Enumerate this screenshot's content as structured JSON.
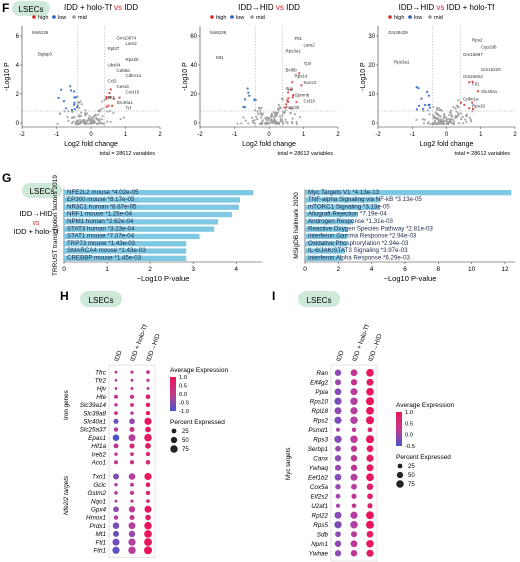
{
  "colors": {
    "high": "#d62728",
    "low": "#1f5fbf",
    "mid": "#9a9a9a",
    "pill": "#cfe9d9",
    "bar": "#7ec8e3",
    "dot_high": "#e8175d",
    "dot_low": "#4a56c8"
  },
  "panel_F": {
    "letter": "F",
    "pill": "LSECs",
    "legend": {
      "high": "high",
      "low": "low",
      "mid": "mid"
    },
    "ylabel": "-Log10 P",
    "xlabel": "Log2 fold change",
    "total_label": "total = 28612 variables",
    "plots": [
      {
        "title_a": "IDD + holo-Tf",
        "title_vs": "vs",
        "title_b": "IDD",
        "xlim": [
          -2,
          2
        ],
        "xticks": [
          "-2",
          "-1",
          "0",
          "1",
          "2"
        ],
        "yticks": [
          "0",
          "2",
          "4",
          "6"
        ],
        "labels": [
          "Mir6236",
          "Gm10074",
          "Lars2",
          "Rpl37",
          "Bglap3",
          "Rps20",
          "Ubx04",
          "Cd59a",
          "Cdkn1a",
          "Ccl2",
          "Ces2c",
          "Cxcl10",
          "Mt1",
          "Slc40a1",
          "Trf"
        ]
      },
      {
        "title_a": "IDD→HID",
        "title_vs": "vs",
        "title_b": "IDD",
        "xlim": [
          -2,
          2
        ],
        "xticks": [
          "-2",
          "-1",
          "0",
          "1",
          "2"
        ],
        "yticks": [
          "0",
          "20",
          "40",
          "60"
        ],
        "labels": [
          "Mir6236",
          "Ftl1",
          "Lars2",
          "Rps3a1",
          "Mt1",
          "Tprl",
          "Bcl6b",
          "Rps14",
          "Socs3",
          "Itga",
          "Gpnmb",
          "Ccl10",
          "Fcgr2b"
        ]
      },
      {
        "title_a": "IDD→HID",
        "title_vs": "vs",
        "title_b": "IDD + holo-Tf",
        "xlim": [
          -2,
          2
        ],
        "xticks": [
          "-2",
          "-1",
          "0",
          "1",
          "2"
        ],
        "yticks": [
          "0",
          "10",
          "20",
          "30"
        ],
        "labels": [
          "Gm28439",
          "Rps2",
          "Cyp2d6",
          "Gm16897",
          "Rps3a1",
          "Gm15220",
          "Gm26822",
          "Ftl1",
          "Slc40a1",
          "Cdkn1a",
          "Rps10"
        ]
      }
    ]
  },
  "panel_G": {
    "letter": "G",
    "pill": "LSECs",
    "cmp_a": "IDD→HID",
    "cmp_vs": "vs",
    "cmp_b": "IDD + holo-Tf",
    "left": {
      "ylabel": "TRRUST transcription factors 2019",
      "xlabel": "−Log10 P-value",
      "xticks": [
        "0",
        "1",
        "2",
        "3",
        "4"
      ],
      "xmax": 4.6,
      "bars": [
        {
          "label": "NFE2L2 mouse *4.02e-05",
          "value": 4.4
        },
        {
          "label": "EP300 mouse *8.17e-05",
          "value": 4.09
        },
        {
          "label": "NR3C1 human *8.67e-05",
          "value": 4.06
        },
        {
          "label": "NRF1 mouse *1.25e-04",
          "value": 3.9
        },
        {
          "label": "NPM1 human *2.62e-04",
          "value": 3.58
        },
        {
          "label": "STAT3 human *3.23e-04",
          "value": 3.49
        },
        {
          "label": "STAT1 mouse *7.07e-04",
          "value": 3.15
        },
        {
          "label": "TRP73 mouse *1.43e-03",
          "value": 2.84
        },
        {
          "label": "SMARCA4 mouse *1.43e-03",
          "value": 2.84
        },
        {
          "label": "CREBBP mouse *1.45e-03",
          "value": 2.84
        }
      ]
    },
    "right": {
      "ylabel": "MSigDB hallmark 2020",
      "xlabel": "−Log10 P-value",
      "xticks": [
        "0",
        "2",
        "4",
        "6",
        "8",
        "10",
        "12"
      ],
      "xmax": 12.6,
      "bars": [
        {
          "label": "Myc Targets V1 *4.13e-13",
          "value": 12.38
        },
        {
          "label": "TNF-alpha Signaling via NF-kB *3.13e-05",
          "value": 4.5
        },
        {
          "label": "mTORC1 Signaling *3.13e-05",
          "value": 4.5
        },
        {
          "label": "Allograft Rejection *7.19e-04",
          "value": 3.14
        },
        {
          "label": "Androgen Response *1.31e-03",
          "value": 2.88
        },
        {
          "label": "Reactive Oxygen Species Pathway *2.81e-03",
          "value": 2.55
        },
        {
          "label": "Interferon Gamma Response *2.94e-03",
          "value": 2.53
        },
        {
          "label": "Oxidative Phosphorylation *2.94e-03",
          "value": 2.53
        },
        {
          "label": "IL-6/JAK/STAT3 Signaling *3.97e-03",
          "value": 2.4
        },
        {
          "label": "Interferon Alpha Response *6.29e-03",
          "value": 2.2
        }
      ]
    }
  },
  "panel_H": {
    "letter": "H",
    "pill": "LSECs",
    "columns": [
      "IDD",
      "IDD + holo-Tf",
      "IDD→HID"
    ],
    "group1": "Iron genes",
    "group2": "Nfe2l2 targets",
    "legend_expr": "Average Expression",
    "expr_ticks": [
      "1.0",
      "0.5",
      "0.0",
      "-0.5",
      "-1.0"
    ],
    "legend_pct": "Percent Expressed",
    "pct_ticks": [
      "25",
      "50",
      "75"
    ],
    "genes": [
      {
        "name": "Tfrc",
        "g": 1,
        "e": [
          0.1,
          0.2,
          0.4
        ],
        "p": [
          6,
          8,
          12
        ]
      },
      {
        "name": "Tfr2",
        "g": 1,
        "e": [
          0.0,
          0.1,
          0.2
        ],
        "p": [
          5,
          6,
          8
        ]
      },
      {
        "name": "Hjv",
        "g": 1,
        "e": [
          0.2,
          0.3,
          0.1
        ],
        "p": [
          5,
          6,
          6
        ]
      },
      {
        "name": "Hfe",
        "g": 1,
        "e": [
          0.4,
          0.5,
          0.7
        ],
        "p": [
          14,
          18,
          24
        ]
      },
      {
        "name": "Slc39a14",
        "g": 1,
        "e": [
          0.3,
          0.5,
          0.8
        ],
        "p": [
          10,
          14,
          22
        ]
      },
      {
        "name": "Slc39a8",
        "g": 1,
        "e": [
          0.5,
          0.2,
          0.9
        ],
        "p": [
          12,
          10,
          20
        ]
      },
      {
        "name": "Slc40a1",
        "g": 1,
        "e": [
          -0.6,
          -0.2,
          1.0
        ],
        "p": [
          30,
          40,
          70
        ]
      },
      {
        "name": "Slc25a37",
        "g": 1,
        "e": [
          0.2,
          0.5,
          1.0
        ],
        "p": [
          20,
          28,
          40
        ]
      },
      {
        "name": "Epas1",
        "g": 1,
        "e": [
          -1.0,
          0.2,
          0.9
        ],
        "p": [
          55,
          65,
          80
        ]
      },
      {
        "name": "Hif1a",
        "g": 1,
        "e": [
          0.4,
          0.6,
          0.9
        ],
        "p": [
          25,
          30,
          40
        ]
      },
      {
        "name": "Ireb2",
        "g": 1,
        "e": [
          0.3,
          0.5,
          0.7
        ],
        "p": [
          10,
          12,
          16
        ]
      },
      {
        "name": "Aco1",
        "g": 1,
        "e": [
          0.4,
          0.5,
          0.6
        ],
        "p": [
          15,
          18,
          22
        ]
      },
      {
        "name": "Txn1",
        "g": 2,
        "e": [
          -0.4,
          0.2,
          1.0
        ],
        "p": [
          45,
          55,
          70
        ]
      },
      {
        "name": "Gclc",
        "g": 2,
        "e": [
          0.0,
          0.2,
          0.8
        ],
        "p": [
          10,
          14,
          24
        ]
      },
      {
        "name": "Gstm2",
        "g": 2,
        "e": [
          0.1,
          0.3,
          0.7
        ],
        "p": [
          12,
          16,
          20
        ]
      },
      {
        "name": "Nqo1",
        "g": 2,
        "e": [
          0.2,
          0.3,
          0.6
        ],
        "p": [
          6,
          8,
          12
        ]
      },
      {
        "name": "Gpx4",
        "g": 2,
        "e": [
          -0.3,
          0.3,
          1.0
        ],
        "p": [
          40,
          50,
          65
        ]
      },
      {
        "name": "Hmox1",
        "g": 2,
        "e": [
          0.1,
          0.4,
          0.9
        ],
        "p": [
          20,
          28,
          38
        ]
      },
      {
        "name": "Prdx1",
        "g": 2,
        "e": [
          -0.5,
          0.2,
          1.0
        ],
        "p": [
          55,
          62,
          78
        ]
      },
      {
        "name": "Mt1",
        "g": 2,
        "e": [
          -0.7,
          -0.2,
          1.0
        ],
        "p": [
          45,
          55,
          80
        ]
      },
      {
        "name": "Ftl1",
        "g": 2,
        "e": [
          -0.6,
          0.1,
          1.0
        ],
        "p": [
          65,
          72,
          85
        ]
      },
      {
        "name": "Fth1",
        "g": 2,
        "e": [
          -0.8,
          0.2,
          1.0
        ],
        "p": [
          70,
          75,
          88
        ]
      }
    ]
  },
  "panel_I": {
    "letter": "I",
    "pill": "LSECs",
    "columns": [
      "IDD",
      "IDD + holo-Tf",
      "IDD→HID"
    ],
    "group": "Myc targets",
    "legend_expr": "Average Expression",
    "expr_ticks": [
      "1.0",
      "0.5",
      "0.0",
      "-0.5"
    ],
    "legend_pct": "Percent Expressed",
    "pct_ticks": [
      "25",
      "50",
      "75"
    ],
    "genes": [
      {
        "name": "Ran",
        "e": [
          -0.3,
          0.3,
          1.0
        ],
        "p": [
          55,
          62,
          80
        ]
      },
      {
        "name": "Eif4g2",
        "e": [
          -0.2,
          0.4,
          0.9
        ],
        "p": [
          45,
          50,
          65
        ]
      },
      {
        "name": "Ppia",
        "e": [
          -0.4,
          0.2,
          1.0
        ],
        "p": [
          60,
          65,
          82
        ]
      },
      {
        "name": "Rps10",
        "e": [
          -0.5,
          0.1,
          1.0
        ],
        "p": [
          70,
          75,
          90
        ]
      },
      {
        "name": "Rpl18",
        "e": [
          -0.3,
          0.2,
          1.0
        ],
        "p": [
          65,
          70,
          85
        ]
      },
      {
        "name": "Rps2",
        "e": [
          -0.5,
          0.1,
          1.0
        ],
        "p": [
          70,
          75,
          90
        ]
      },
      {
        "name": "Psmd1",
        "e": [
          0.0,
          0.3,
          0.8
        ],
        "p": [
          15,
          20,
          26
        ]
      },
      {
        "name": "Rps3",
        "e": [
          -0.4,
          0.2,
          1.0
        ],
        "p": [
          72,
          76,
          90
        ]
      },
      {
        "name": "Serbp1",
        "e": [
          -0.2,
          0.3,
          0.9
        ],
        "p": [
          40,
          48,
          60
        ]
      },
      {
        "name": "Canx",
        "e": [
          -0.3,
          0.3,
          0.9
        ],
        "p": [
          50,
          55,
          70
        ]
      },
      {
        "name": "Ywhaq",
        "e": [
          -0.2,
          0.3,
          0.9
        ],
        "p": [
          45,
          50,
          65
        ]
      },
      {
        "name": "Eef1b2",
        "e": [
          -0.4,
          0.2,
          1.0
        ],
        "p": [
          60,
          66,
          82
        ]
      },
      {
        "name": "Cox5a",
        "e": [
          -0.2,
          0.2,
          0.8
        ],
        "p": [
          35,
          40,
          55
        ]
      },
      {
        "name": "Eif2s2",
        "e": [
          -0.1,
          0.3,
          0.8
        ],
        "p": [
          25,
          30,
          40
        ]
      },
      {
        "name": "U2af1",
        "e": [
          0.0,
          0.3,
          0.8
        ],
        "p": [
          18,
          22,
          30
        ]
      },
      {
        "name": "Rpl22",
        "e": [
          -0.4,
          0.2,
          1.0
        ],
        "p": [
          65,
          70,
          86
        ]
      },
      {
        "name": "Rps5",
        "e": [
          -0.5,
          0.1,
          1.0
        ],
        "p": [
          72,
          76,
          90
        ]
      },
      {
        "name": "Sdb",
        "e": [
          -0.3,
          0.2,
          0.9
        ],
        "p": [
          40,
          45,
          60
        ]
      },
      {
        "name": "Npm1",
        "e": [
          -0.3,
          0.3,
          1.0
        ],
        "p": [
          55,
          60,
          78
        ]
      },
      {
        "name": "Ywhae",
        "e": [
          -0.3,
          0.3,
          0.9
        ],
        "p": [
          50,
          55,
          70
        ]
      }
    ]
  }
}
